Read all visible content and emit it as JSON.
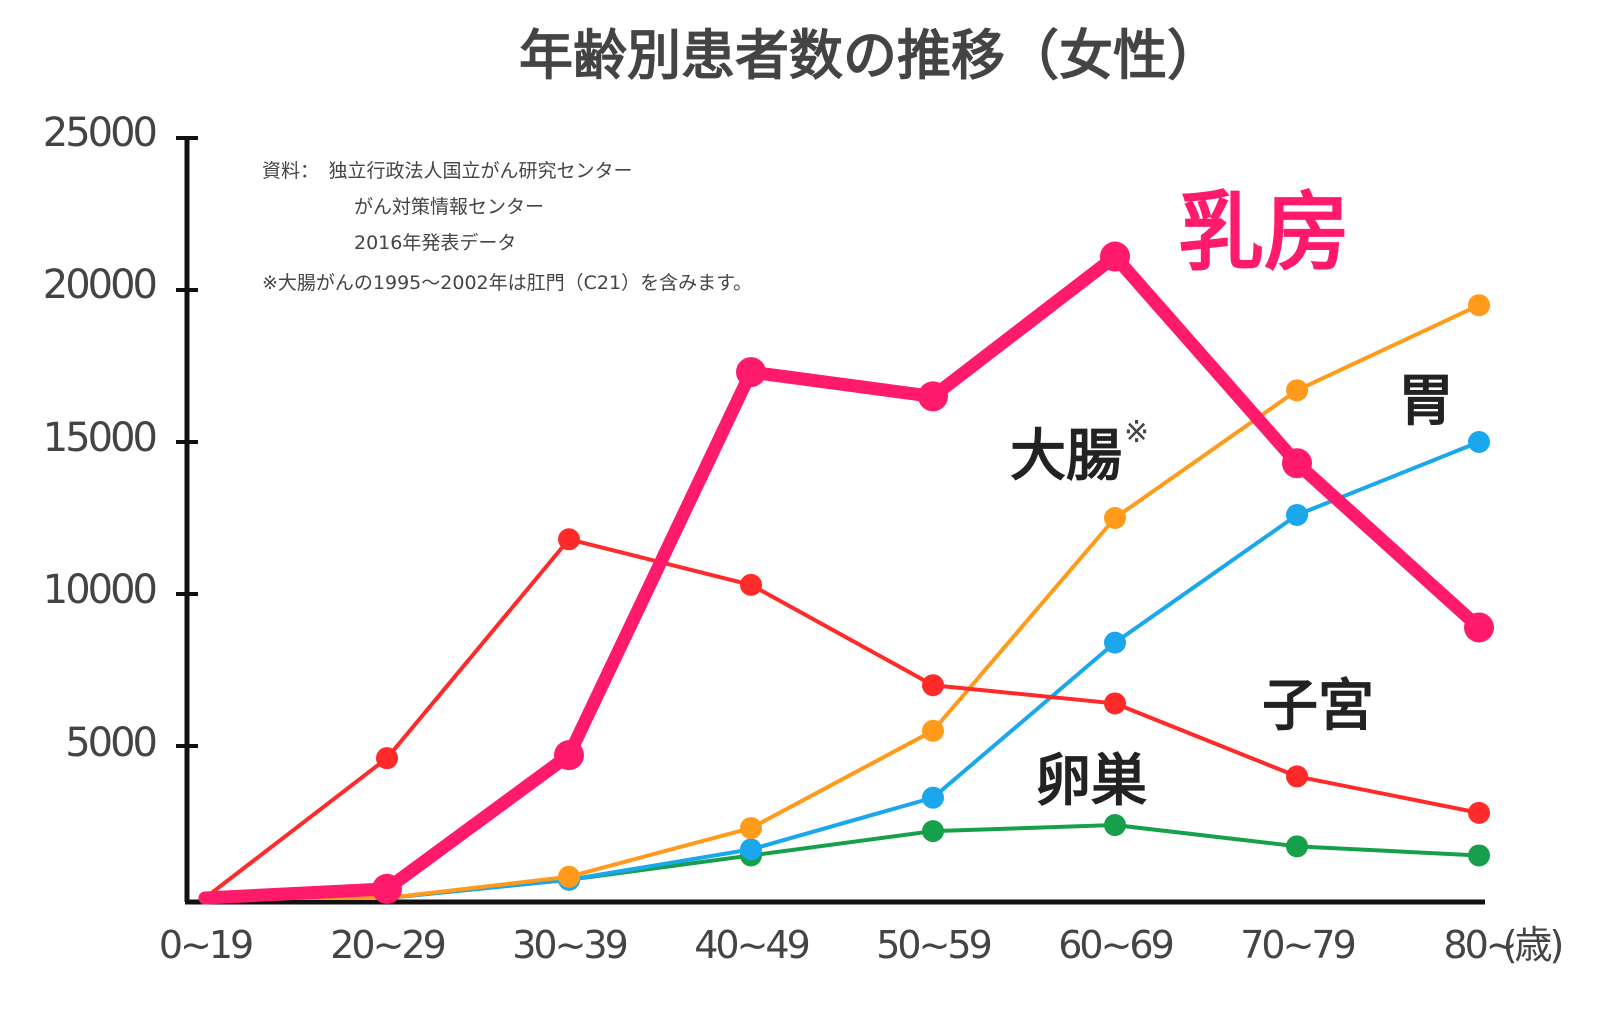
{
  "chart_data": {
    "type": "line",
    "title": "年齢別患者数の推移（女性）",
    "xlabel": "",
    "ylabel": "",
    "x_unit": "(歳)",
    "categories": [
      "0~19",
      "20~29",
      "30~39",
      "40~49",
      "50~59",
      "60~69",
      "70~79",
      "80~"
    ],
    "yticks": [
      "25000",
      "20000",
      "15000",
      "10000",
      "5000"
    ],
    "ylim": [
      0,
      25000
    ],
    "grid": false,
    "source_lines": [
      "資料：　独立行政法人国立がん研究センター",
      "がん対策情報センター",
      "2016年発表データ",
      "※大腸がんの1995～2002年は肛門（C21）を含みます。"
    ],
    "series": [
      {
        "name": "乳房",
        "color": "#ff1a6c",
        "values": [
          0,
          300,
          4700,
          17300,
          16500,
          21100,
          14300,
          8900
        ]
      },
      {
        "name": "子宮",
        "color": "#ff2a2a",
        "values": [
          0,
          4600,
          11800,
          10300,
          7000,
          6400,
          4000,
          2800
        ]
      },
      {
        "name": "大腸",
        "name_mark": "※",
        "color": "#ff9a1a",
        "values": [
          0,
          0,
          700,
          2300,
          5500,
          12500,
          16700,
          19500
        ]
      },
      {
        "name": "胃",
        "color": "#1aa7ec",
        "values": [
          0,
          0,
          600,
          1600,
          3300,
          8400,
          12600,
          15000
        ]
      },
      {
        "name": "卵巣",
        "color": "#16a04a",
        "values": [
          0,
          0,
          600,
          1400,
          2200,
          2400,
          1700,
          1400
        ]
      }
    ]
  }
}
